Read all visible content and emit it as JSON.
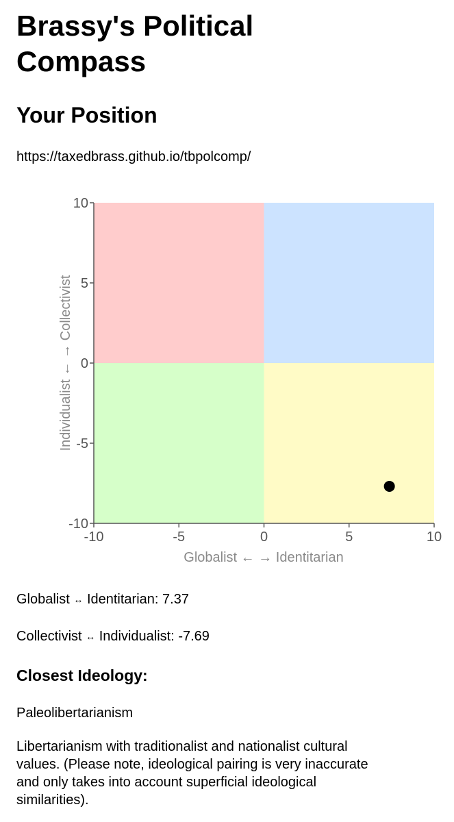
{
  "page": {
    "title": "Brassy's Political Compass",
    "subtitle": "Your Position",
    "url": "https://taxedbrass.github.io/tbpolcomp/"
  },
  "chart_data": {
    "type": "scatter",
    "xlabel": "Globalist ← → Identitarian",
    "ylabel": "Individualist ← → Collectivist",
    "xlim": [
      -10,
      10
    ],
    "ylim": [
      -10,
      10
    ],
    "xticks": [
      -10,
      -5,
      0,
      5,
      10
    ],
    "yticks": [
      -10,
      -5,
      0,
      5,
      10
    ],
    "grid": false,
    "quadrant_colors": {
      "top_left": "#ffcccc",
      "top_right": "#cce3ff",
      "bottom_left": "#d6ffc9",
      "bottom_right": "#fffbc6"
    },
    "points": [
      {
        "x": 7.37,
        "y": -7.69,
        "color": "#000000"
      }
    ]
  },
  "results": {
    "x_axis_name": "Globalist",
    "x_axis_name2": "Identitarian",
    "x_value": "7.37",
    "y_axis_name": "Collectivist",
    "y_axis_name2": "Individualist",
    "y_value": "-7.69",
    "arrow": "↔",
    "closest_label": "Closest Ideology:",
    "ideology": "Paleolibertarianism",
    "description": "Libertarianism with traditionalist and nationalist cultural values. (Please note, ideological pairing is very inaccurate and only takes into account superficial ideological similarities)."
  }
}
